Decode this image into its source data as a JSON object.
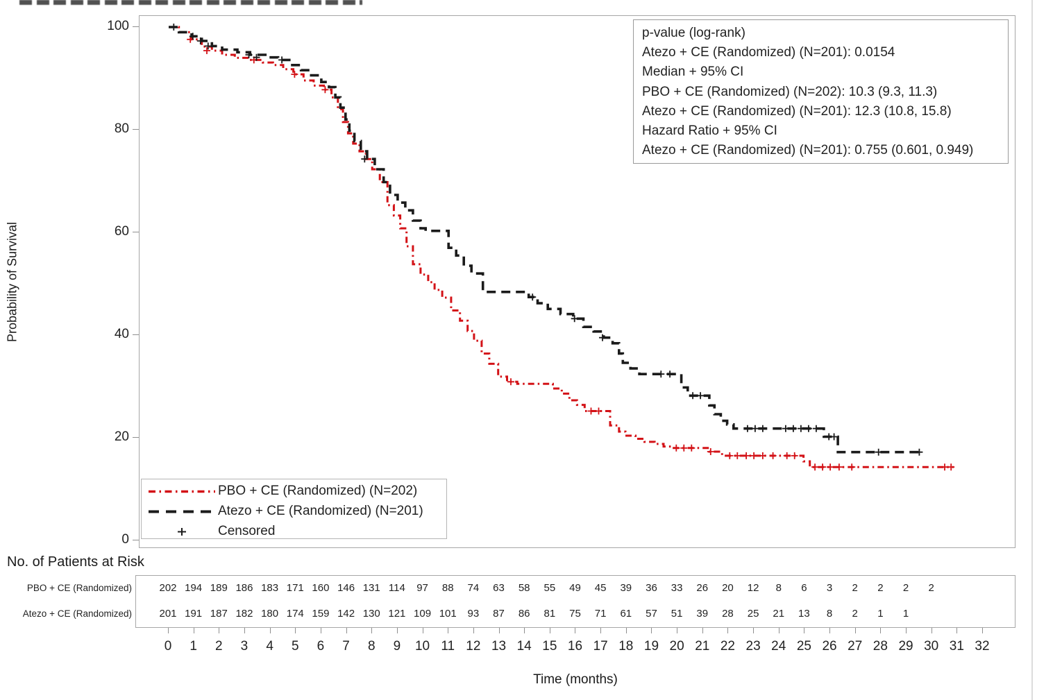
{
  "chart": {
    "ylabel": "Probability of Survival",
    "xlabel": "Time (months)"
  },
  "stats_box": {
    "lines": [
      "p-value (log-rank)",
      "Atezo + CE (Randomized) (N=201): 0.0154",
      "Median + 95% CI",
      "PBO + CE (Randomized) (N=202): 10.3 (9.3, 11.3)",
      "Atezo + CE (Randomized) (N=201): 12.3 (10.8, 15.8)",
      "Hazard Ratio + 95% CI",
      "Atezo + CE (Randomized) (N=201): 0.755 (0.601, 0.949)"
    ]
  },
  "legend": {
    "items": [
      {
        "label": "PBO + CE (Randomized) (N=202)",
        "style": "red-dash-dot"
      },
      {
        "label": "Atezo + CE (Randomized) (N=201)",
        "style": "black-dash"
      },
      {
        "label": "Censored",
        "style": "plus-marker"
      }
    ]
  },
  "risk_table": {
    "heading": "No. of Patients at Risk",
    "rows": [
      {
        "label": "PBO + CE (Randomized)",
        "counts": [
          202,
          194,
          189,
          186,
          183,
          171,
          160,
          146,
          131,
          114,
          97,
          88,
          74,
          63,
          58,
          55,
          49,
          45,
          39,
          36,
          33,
          26,
          20,
          12,
          8,
          6,
          3,
          2,
          2,
          2,
          2
        ]
      },
      {
        "label": "Atezo + CE (Randomized)",
        "counts": [
          201,
          191,
          187,
          182,
          180,
          174,
          159,
          142,
          130,
          121,
          109,
          101,
          93,
          87,
          86,
          81,
          75,
          71,
          61,
          57,
          51,
          39,
          28,
          25,
          21,
          13,
          8,
          2,
          1,
          1
        ]
      }
    ]
  },
  "chart_data": {
    "type": "line",
    "subtype": "kaplan-meier-step",
    "title": "(title cropped at top of screenshot)",
    "xlabel": "Time (months)",
    "ylabel": "Probability of Survival",
    "xlim": [
      0,
      32
    ],
    "ylim": [
      0,
      100
    ],
    "xticks": [
      0,
      1,
      2,
      3,
      4,
      5,
      6,
      7,
      8,
      9,
      10,
      11,
      12,
      13,
      14,
      15,
      16,
      17,
      18,
      19,
      20,
      21,
      22,
      23,
      24,
      25,
      26,
      27,
      28,
      29,
      30,
      31,
      32
    ],
    "yticks": [
      100,
      80,
      60,
      40,
      20,
      0
    ],
    "grid": false,
    "legend_position": "inside bottom-left",
    "p_value_logrank": "0.0154",
    "median_95ci": {
      "pbo": "10.3 (9.3, 11.3)",
      "atezo": "12.3 (10.8, 15.8)"
    },
    "hazard_ratio_95ci": "0.755 (0.601, 0.949)",
    "colors": {
      "pbo": "#d31217",
      "atezo": "#1b1b1b",
      "border": "#a6a6a6"
    },
    "series": [
      {
        "name": "PBO + CE (Randomized) (N=202)",
        "color": "#d31217",
        "line_style": "dash-dot",
        "points": [
          [
            0,
            100
          ],
          [
            0.4,
            99
          ],
          [
            0.9,
            97.6
          ],
          [
            1.3,
            96.2
          ],
          [
            1.7,
            95.4
          ],
          [
            2.1,
            94.6
          ],
          [
            2.6,
            94.0
          ],
          [
            3.1,
            93.6
          ],
          [
            3.7,
            93.1
          ],
          [
            4.1,
            92.6
          ],
          [
            4.5,
            91.8
          ],
          [
            4.9,
            90.8
          ],
          [
            5.3,
            89.6
          ],
          [
            5.7,
            88.6
          ],
          [
            6.1,
            87.8
          ],
          [
            6.4,
            86.3
          ],
          [
            6.65,
            84.0
          ],
          [
            6.85,
            81.5
          ],
          [
            7.05,
            79.3
          ],
          [
            7.25,
            77.3
          ],
          [
            7.5,
            75.8
          ],
          [
            7.75,
            74.3
          ],
          [
            8.0,
            72.3
          ],
          [
            8.3,
            69.8
          ],
          [
            8.6,
            65.3
          ],
          [
            8.85,
            63.3
          ],
          [
            9.1,
            60.8
          ],
          [
            9.35,
            57.3
          ],
          [
            9.6,
            53.8
          ],
          [
            9.9,
            51.8
          ],
          [
            10.2,
            50.3
          ],
          [
            10.45,
            48.8
          ],
          [
            10.75,
            47.3
          ],
          [
            11.1,
            44.8
          ],
          [
            11.45,
            42.8
          ],
          [
            11.75,
            40.8
          ],
          [
            12.0,
            38.9
          ],
          [
            12.3,
            36.4
          ],
          [
            12.6,
            34.4
          ],
          [
            12.95,
            31.9
          ],
          [
            13.3,
            30.9
          ],
          [
            13.7,
            30.5
          ],
          [
            15.1,
            29.6
          ],
          [
            15.45,
            28.6
          ],
          [
            15.75,
            27.3
          ],
          [
            16.05,
            26.4
          ],
          [
            16.35,
            25.2
          ],
          [
            17.35,
            22.4
          ],
          [
            17.7,
            21.2
          ],
          [
            17.95,
            20.4
          ],
          [
            18.35,
            19.8
          ],
          [
            18.7,
            19.2
          ],
          [
            19.1,
            18.8
          ],
          [
            19.45,
            18.3
          ],
          [
            19.75,
            18.0
          ],
          [
            21.25,
            17.3
          ],
          [
            21.75,
            16.5
          ],
          [
            24.95,
            15.4
          ],
          [
            25.2,
            14.3
          ],
          [
            30.85,
            14.3
          ]
        ],
        "censored": [
          [
            0.85,
            97.6
          ],
          [
            1.5,
            95.4
          ],
          [
            3.35,
            93.6
          ],
          [
            4.95,
            90.8
          ],
          [
            6.15,
            87.8
          ],
          [
            13.45,
            30.9
          ],
          [
            16.6,
            25.2
          ],
          [
            16.9,
            25.2
          ],
          [
            19.95,
            18.0
          ],
          [
            20.25,
            18.0
          ],
          [
            20.55,
            18.0
          ],
          [
            21.3,
            17.3
          ],
          [
            22.05,
            16.5
          ],
          [
            22.35,
            16.5
          ],
          [
            22.7,
            16.5
          ],
          [
            23.0,
            16.5
          ],
          [
            23.35,
            16.5
          ],
          [
            23.75,
            16.5
          ],
          [
            24.3,
            16.5
          ],
          [
            24.6,
            16.5
          ],
          [
            25.4,
            14.3
          ],
          [
            25.7,
            14.3
          ],
          [
            26.0,
            14.3
          ],
          [
            26.35,
            14.3
          ],
          [
            26.85,
            14.3
          ],
          [
            30.5,
            14.3
          ],
          [
            30.75,
            14.3
          ]
        ]
      },
      {
        "name": "Atezo + CE (Randomized) (N=201)",
        "color": "#1b1b1b",
        "line_style": "dashed",
        "points": [
          [
            0,
            100
          ],
          [
            0.4,
            99
          ],
          [
            0.9,
            98.2
          ],
          [
            1.3,
            97.3
          ],
          [
            1.7,
            96.3
          ],
          [
            2.1,
            95.6
          ],
          [
            2.7,
            95.1
          ],
          [
            3.2,
            94.6
          ],
          [
            3.8,
            94.1
          ],
          [
            4.3,
            93.6
          ],
          [
            4.8,
            92.6
          ],
          [
            5.2,
            91.6
          ],
          [
            5.6,
            90.6
          ],
          [
            6.0,
            89.3
          ],
          [
            6.3,
            88.3
          ],
          [
            6.55,
            86.3
          ],
          [
            6.75,
            84.3
          ],
          [
            6.95,
            82.0
          ],
          [
            7.1,
            79.8
          ],
          [
            7.3,
            77.8
          ],
          [
            7.55,
            75.8
          ],
          [
            7.8,
            74.3
          ],
          [
            8.1,
            72.3
          ],
          [
            8.45,
            69.8
          ],
          [
            8.7,
            67.3
          ],
          [
            9.0,
            65.8
          ],
          [
            9.3,
            64.3
          ],
          [
            9.6,
            62.3
          ],
          [
            9.9,
            60.8
          ],
          [
            10.1,
            60.3
          ],
          [
            11.0,
            57.0
          ],
          [
            11.3,
            55.5
          ],
          [
            11.6,
            53.5
          ],
          [
            11.9,
            52.0
          ],
          [
            12.35,
            48.4
          ],
          [
            14.15,
            47.4
          ],
          [
            14.5,
            46.2
          ],
          [
            14.9,
            45.1
          ],
          [
            15.4,
            44.1
          ],
          [
            15.9,
            43.2
          ],
          [
            16.3,
            41.6
          ],
          [
            16.7,
            40.7
          ],
          [
            17.1,
            39.5
          ],
          [
            17.45,
            38.4
          ],
          [
            17.7,
            36.4
          ],
          [
            17.85,
            34.6
          ],
          [
            18.15,
            33.5
          ],
          [
            18.5,
            32.4
          ],
          [
            20.15,
            29.8
          ],
          [
            20.4,
            28.2
          ],
          [
            21.25,
            26.3
          ],
          [
            21.45,
            24.6
          ],
          [
            21.7,
            23.3
          ],
          [
            21.95,
            22.6
          ],
          [
            22.2,
            21.8
          ],
          [
            25.75,
            20.2
          ],
          [
            26.3,
            17.2
          ],
          [
            29.6,
            17.2
          ]
        ],
        "censored": [
          [
            0.2,
            100
          ],
          [
            0.95,
            98.2
          ],
          [
            1.25,
            97.3
          ],
          [
            1.55,
            96.3
          ],
          [
            3.15,
            94.6
          ],
          [
            3.45,
            94.1
          ],
          [
            4.45,
            93.6
          ],
          [
            7.7,
            74.3
          ],
          [
            14.3,
            47.4
          ],
          [
            15.95,
            43.2
          ],
          [
            17.05,
            39.5
          ],
          [
            19.35,
            32.4
          ],
          [
            19.7,
            32.4
          ],
          [
            20.6,
            28.2
          ],
          [
            20.9,
            28.2
          ],
          [
            22.75,
            21.8
          ],
          [
            23.05,
            21.8
          ],
          [
            23.35,
            21.8
          ],
          [
            24.25,
            21.8
          ],
          [
            24.55,
            21.8
          ],
          [
            24.85,
            21.8
          ],
          [
            25.15,
            21.8
          ],
          [
            25.45,
            21.8
          ],
          [
            25.95,
            20.2
          ],
          [
            26.15,
            20.2
          ],
          [
            27.9,
            17.2
          ],
          [
            29.5,
            17.2
          ]
        ]
      }
    ]
  }
}
